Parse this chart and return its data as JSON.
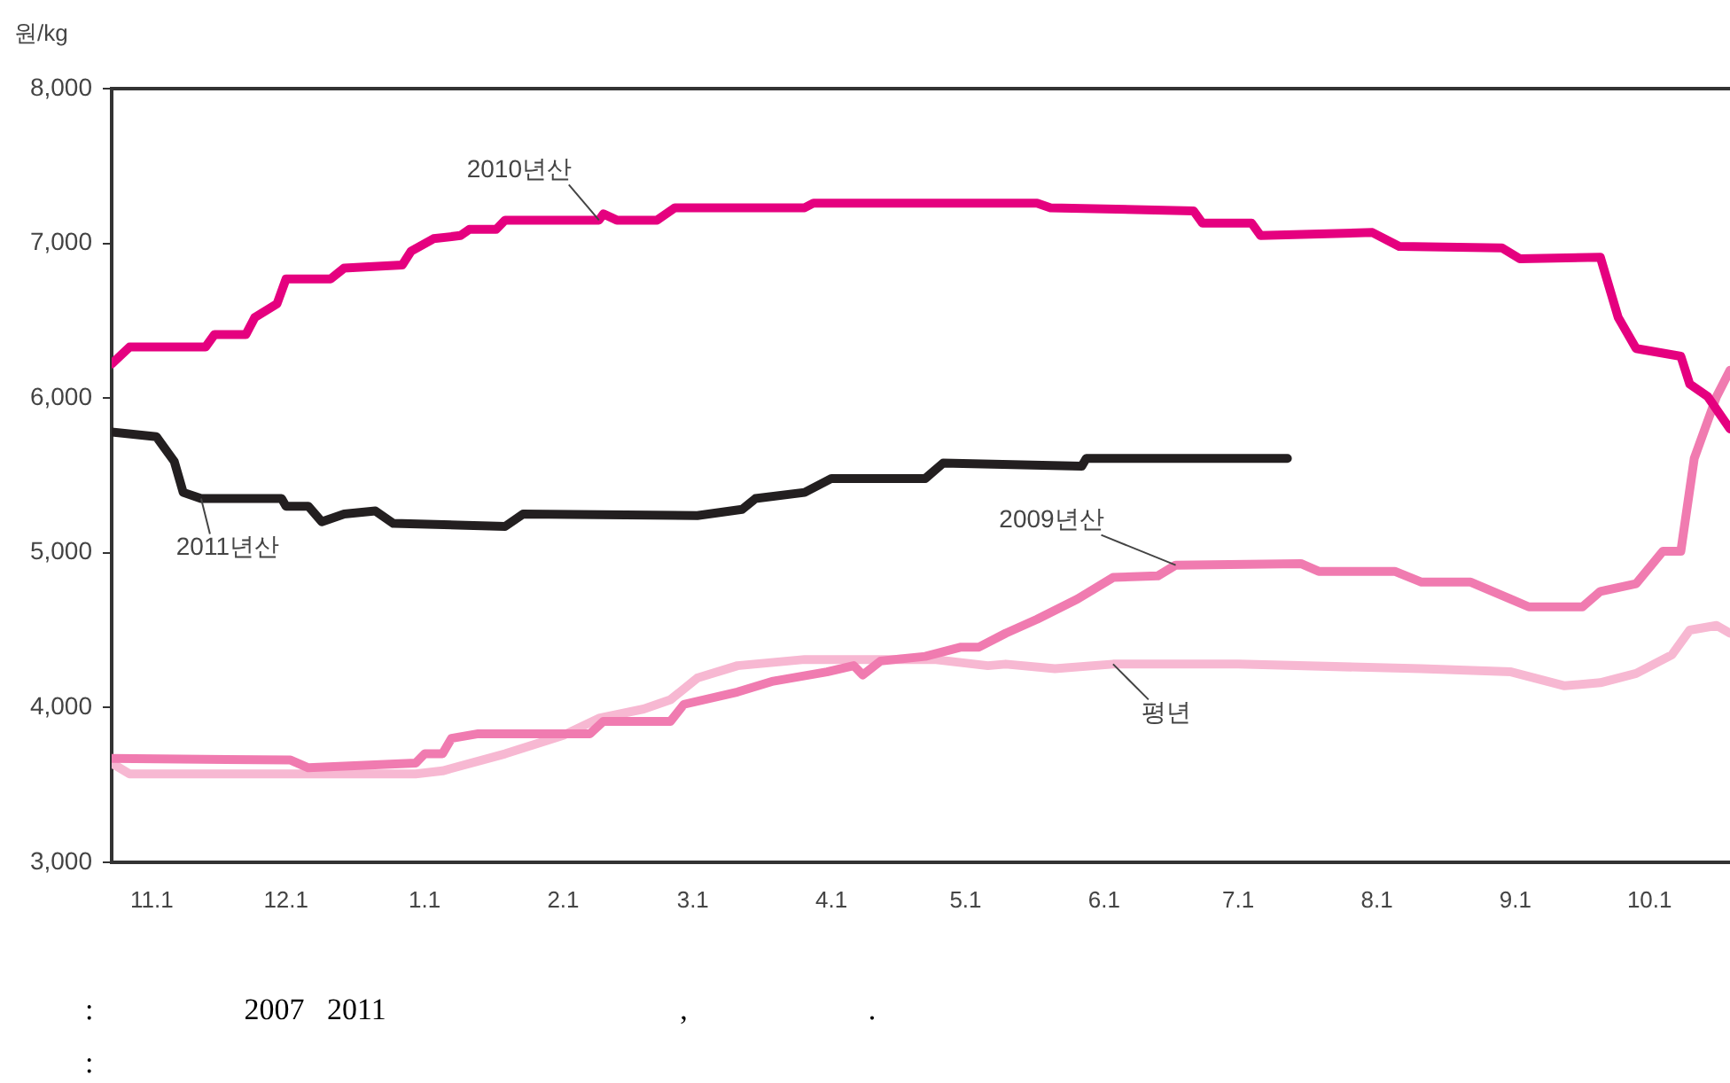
{
  "chart_data": {
    "type": "line",
    "ylabel": "원/kg",
    "xlim": [
      "2011-10-23",
      "2012-10-19"
    ],
    "xticks": [
      {
        "value": "2011-11-01",
        "label": "11.1"
      },
      {
        "value": "2011-12-01",
        "label": "12.1"
      },
      {
        "value": "2012-01-01",
        "label": "1.1"
      },
      {
        "value": "2012-02-01",
        "label": "2.1"
      },
      {
        "value": "2012-03-01",
        "label": "3.1"
      },
      {
        "value": "2012-04-01",
        "label": "4.1"
      },
      {
        "value": "2012-05-01",
        "label": "5.1"
      },
      {
        "value": "2012-06-01",
        "label": "6.1"
      },
      {
        "value": "2012-07-01",
        "label": "7.1"
      },
      {
        "value": "2012-08-01",
        "label": "8.1"
      },
      {
        "value": "2012-09-01",
        "label": "9.1"
      },
      {
        "value": "2012-10-01",
        "label": "10.1"
      }
    ],
    "ylim": [
      3000,
      8000
    ],
    "yticks": [
      {
        "value": 3000,
        "label": "3,000"
      },
      {
        "value": 4000,
        "label": "4,000"
      },
      {
        "value": 5000,
        "label": "5,000"
      },
      {
        "value": 6000,
        "label": "6,000"
      },
      {
        "value": 7000,
        "label": "7,000"
      },
      {
        "value": 8000,
        "label": "8,000"
      }
    ],
    "grid": false,
    "legend": false,
    "marker": "none",
    "line_style": "solid",
    "series": [
      {
        "name": "2010년산",
        "color": "#e5007f",
        "x": [
          "2011-10-23",
          "2011-10-27",
          "2011-11-13",
          "2011-11-15",
          "2011-11-22",
          "2011-11-24",
          "2011-11-29",
          "2011-12-01",
          "2011-12-11",
          "2011-12-14",
          "2011-12-27",
          "2011-12-29",
          "2012-01-03",
          "2012-01-09",
          "2012-01-11",
          "2012-01-17",
          "2012-01-19",
          "2012-02-09",
          "2012-02-10",
          "2012-02-13",
          "2012-02-22",
          "2012-02-26",
          "2012-03-26",
          "2012-03-28",
          "2012-05-17",
          "2012-05-20",
          "2012-06-21",
          "2012-06-23",
          "2012-07-04",
          "2012-07-06",
          "2012-07-31",
          "2012-08-06",
          "2012-08-29",
          "2012-09-02",
          "2012-09-20",
          "2012-09-24",
          "2012-09-28",
          "2012-10-08",
          "2012-10-10",
          "2012-10-14",
          "2012-10-19"
        ],
        "values": [
          6220,
          6330,
          6330,
          6410,
          6410,
          6520,
          6610,
          6770,
          6770,
          6840,
          6860,
          6950,
          7030,
          7050,
          7090,
          7090,
          7150,
          7150,
          7190,
          7150,
          7150,
          7230,
          7230,
          7260,
          7260,
          7230,
          7210,
          7130,
          7130,
          7050,
          7070,
          6980,
          6970,
          6900,
          6910,
          6520,
          6320,
          6270,
          6090,
          6010,
          5800
        ]
      },
      {
        "name": "2011년산",
        "color": "#231f20",
        "x": [
          "2011-10-23",
          "2011-11-02",
          "2011-11-06",
          "2011-11-08",
          "2011-11-12",
          "2011-11-30",
          "2011-12-01",
          "2011-12-06",
          "2011-12-09",
          "2011-12-14",
          "2011-12-21",
          "2011-12-25",
          "2012-01-19",
          "2012-01-23",
          "2012-03-02",
          "2012-03-12",
          "2012-03-15",
          "2012-03-26",
          "2012-04-01",
          "2012-04-22",
          "2012-04-26",
          "2012-05-27",
          "2012-05-28",
          "2012-07-12"
        ],
        "values": [
          5780,
          5750,
          5590,
          5390,
          5350,
          5350,
          5300,
          5300,
          5200,
          5250,
          5270,
          5190,
          5170,
          5250,
          5240,
          5280,
          5350,
          5390,
          5480,
          5480,
          5580,
          5560,
          5610,
          5610
        ]
      },
      {
        "name": "2009년산",
        "color": "#f07bb0",
        "x": [
          "2011-10-23",
          "2011-12-02",
          "2011-12-06",
          "2011-12-30",
          "2012-01-01",
          "2012-01-05",
          "2012-01-07",
          "2012-01-13",
          "2012-02-07",
          "2012-02-10",
          "2012-02-25",
          "2012-02-28",
          "2012-03-11",
          "2012-03-19",
          "2012-03-31",
          "2012-04-06",
          "2012-04-08",
          "2012-04-12",
          "2012-04-22",
          "2012-04-30",
          "2012-05-04",
          "2012-05-10",
          "2012-05-17",
          "2012-05-26",
          "2012-06-03",
          "2012-06-13",
          "2012-06-17",
          "2012-07-15",
          "2012-07-19",
          "2012-08-05",
          "2012-08-11",
          "2012-08-22",
          "2012-08-31",
          "2012-09-04",
          "2012-09-16",
          "2012-09-20",
          "2012-09-28",
          "2012-10-04",
          "2012-10-08",
          "2012-10-11",
          "2012-10-16",
          "2012-10-19"
        ],
        "values": [
          3670,
          3660,
          3610,
          3640,
          3700,
          3700,
          3800,
          3830,
          3830,
          3910,
          3910,
          4020,
          4100,
          4170,
          4230,
          4270,
          4210,
          4300,
          4330,
          4390,
          4390,
          4480,
          4570,
          4700,
          4840,
          4850,
          4920,
          4930,
          4880,
          4880,
          4810,
          4810,
          4700,
          4650,
          4650,
          4750,
          4800,
          5010,
          5010,
          5610,
          6010,
          6180
        ]
      },
      {
        "name": "평년",
        "color": "#f7b8d2",
        "x": [
          "2011-10-23",
          "2011-10-27",
          "2011-12-30",
          "2012-01-05",
          "2012-01-19",
          "2012-02-01",
          "2012-02-09",
          "2012-02-19",
          "2012-02-25",
          "2012-03-02",
          "2012-03-11",
          "2012-03-26",
          "2012-04-24",
          "2012-05-06",
          "2012-05-10",
          "2012-05-21",
          "2012-06-03",
          "2012-07-01",
          "2012-08-11",
          "2012-08-31",
          "2012-09-12",
          "2012-09-20",
          "2012-09-28",
          "2012-10-06",
          "2012-10-10",
          "2012-10-16",
          "2012-10-19"
        ],
        "values": [
          3640,
          3570,
          3570,
          3590,
          3700,
          3820,
          3930,
          3990,
          4050,
          4190,
          4270,
          4310,
          4310,
          4270,
          4280,
          4250,
          4280,
          4280,
          4250,
          4230,
          4140,
          4160,
          4220,
          4340,
          4500,
          4530,
          4480
        ]
      }
    ],
    "annotations": [
      ":                    2007   2011                                       ,                        .",
      ":"
    ]
  }
}
